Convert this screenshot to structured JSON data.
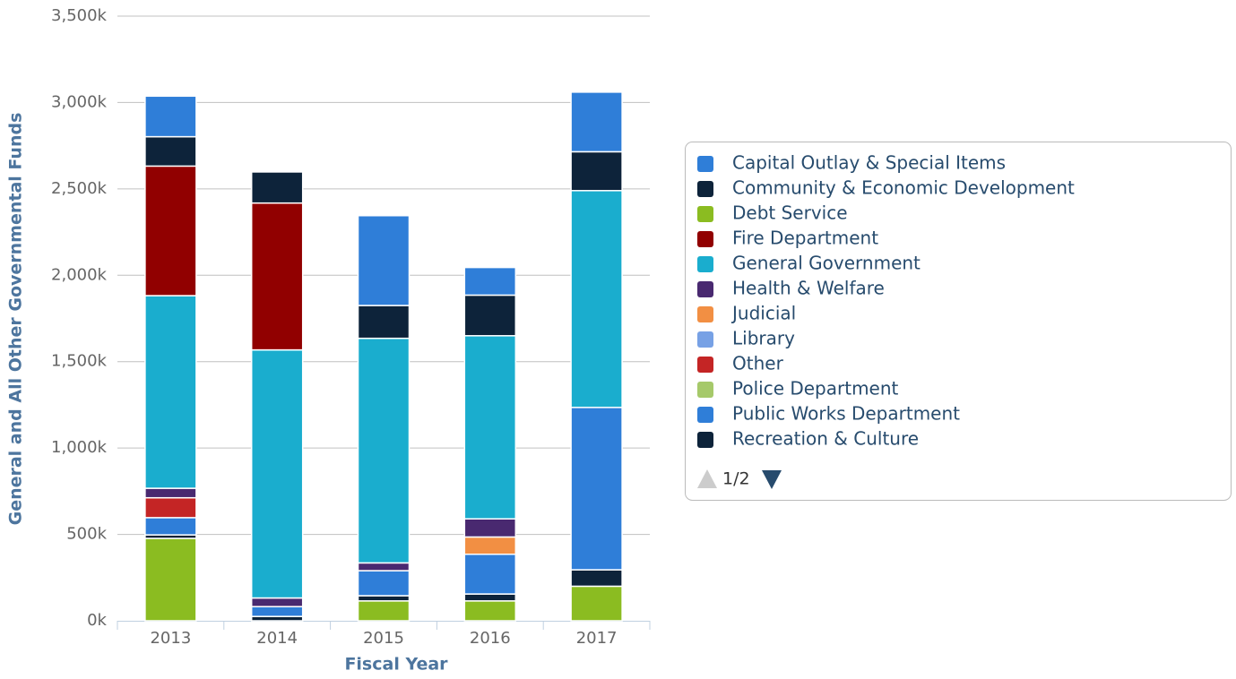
{
  "chart_data": {
    "type": "stacked_bar",
    "x_label": "Fiscal Year",
    "y_label": "General and All Other Governmental Funds",
    "categories": [
      "2013",
      "2014",
      "2015",
      "2016",
      "2017"
    ],
    "ylim": [
      0,
      3500000
    ],
    "yticks": [
      {
        "value": 0,
        "label": "0k"
      },
      {
        "value": 500000,
        "label": "500k"
      },
      {
        "value": 1000000,
        "label": "1,000k"
      },
      {
        "value": 1500000,
        "label": "1,500k"
      },
      {
        "value": 2000000,
        "label": "2,000k"
      },
      {
        "value": 2500000,
        "label": "2,500k"
      },
      {
        "value": 3000000,
        "label": "3,000k"
      },
      {
        "value": 3500000,
        "label": "3,500k"
      }
    ],
    "grid": true,
    "legend_page": "1/2",
    "series": [
      {
        "name": "Capital Outlay & Special Items",
        "color": "#2f7ed8",
        "values": [
          235000,
          null,
          520000,
          160000,
          345000
        ]
      },
      {
        "name": "Community & Economic Development",
        "color": "#0d233a",
        "values": [
          170000,
          180000,
          190000,
          235000,
          225000
        ]
      },
      {
        "name": "Debt Service",
        "color": "#8bbc21",
        "values": [
          null,
          null,
          null,
          null,
          null
        ]
      },
      {
        "name": "Fire Department",
        "color": "#910000",
        "values": [
          750000,
          850000,
          null,
          null,
          null
        ]
      },
      {
        "name": "General Government",
        "color": "#1aadce",
        "values": [
          1115000,
          1436000,
          1300000,
          1060000,
          1255000
        ]
      },
      {
        "name": "Health & Welfare",
        "color": "#492970",
        "values": [
          55000,
          50000,
          45000,
          105000,
          null
        ]
      },
      {
        "name": "Judicial",
        "color": "#f28f43",
        "values": [
          null,
          null,
          null,
          100000,
          null
        ]
      },
      {
        "name": "Library",
        "color": "#77a1e5",
        "values": [
          null,
          null,
          null,
          null,
          null
        ]
      },
      {
        "name": "Other",
        "color": "#c42525",
        "values": [
          115000,
          null,
          null,
          null,
          null
        ]
      },
      {
        "name": "Police Department",
        "color": "#a6c96a",
        "values": [
          null,
          null,
          null,
          null,
          null
        ]
      },
      {
        "name": "Public Works Department",
        "color": "#2f7ed8",
        "values": [
          100000,
          57000,
          145000,
          230000,
          940000
        ]
      },
      {
        "name": "Recreation & Culture",
        "color": "#0d233a",
        "values": [
          20000,
          25000,
          30000,
          40000,
          95000
        ]
      },
      {
        "color": "#8bbc21",
        "values": [
          477000,
          null,
          115000,
          115000,
          200000
        ]
      }
    ]
  }
}
